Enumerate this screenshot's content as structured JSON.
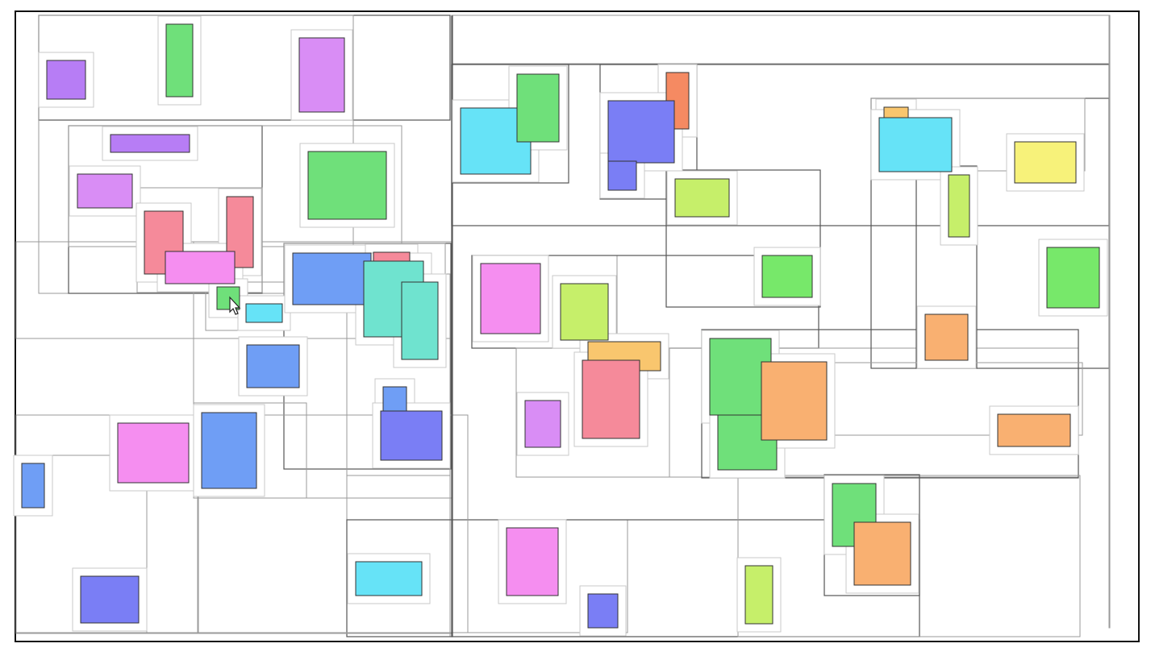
{
  "canvas": {
    "background": "#ffffff",
    "frame_border": "#111111",
    "cursor_icon": "mouse-pointer-icon"
  },
  "palette": {
    "purple": "#b77df5",
    "lilac": "#d98df5",
    "green": "#6fe07a",
    "cyan": "#66e3f7",
    "blue": "#6f9ef5",
    "indigo": "#7a7ef5",
    "pink": "#f58ef0",
    "red": "#f58a9a",
    "orange": "#f58a62",
    "teal": "#6fe3cf",
    "lime": "#c6ef6a",
    "yellow": "#f7f27a",
    "amber": "#f9c66e",
    "peach": "#f9b071",
    "bright_green": "#77e86a"
  },
  "legend": []
}
